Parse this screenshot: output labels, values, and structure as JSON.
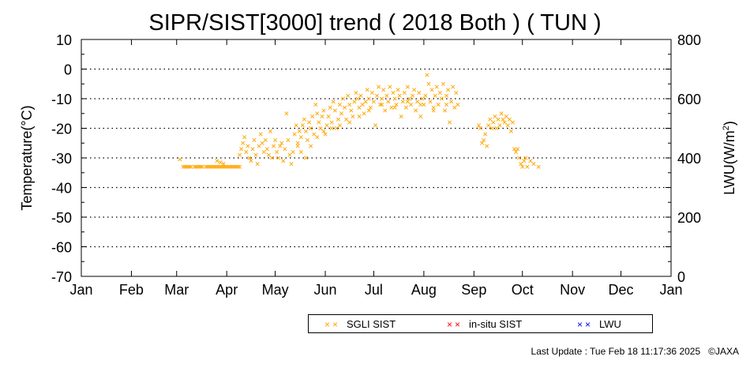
{
  "chart_data": {
    "type": "scatter",
    "title": "SIPR/SIST[3000] trend ( 2018 Both ) ( TUN )",
    "ylabel": "Temperature(°C)",
    "y2label_main": "LWU(W/m",
    "y2label_sup": "2",
    "y2label_end": ")",
    "xlim": [
      0,
      365
    ],
    "ylim": [
      -70,
      10
    ],
    "y2lim": [
      0,
      800
    ],
    "y_ticks": [
      10,
      0,
      -10,
      -20,
      -30,
      -40,
      -50,
      -60,
      -70
    ],
    "y2_ticks": [
      800,
      600,
      400,
      200,
      0
    ],
    "x_tick_labels": [
      "Jan",
      "Feb",
      "Mar",
      "Apr",
      "May",
      "Jun",
      "Jul",
      "Aug",
      "Sep",
      "Oct",
      "Nov",
      "Dec",
      "Jan"
    ],
    "x_tick_days": [
      0,
      31,
      59,
      90,
      120,
      151,
      181,
      212,
      243,
      273,
      304,
      334,
      365
    ],
    "grid": "horizontal dotted",
    "legend_position": "bottom",
    "series": [
      {
        "name": "SGLI SIST",
        "color": "#FFA500",
        "points": [
          [
            61,
            -30.5
          ],
          [
            63,
            -33
          ],
          [
            64,
            -33
          ],
          [
            65,
            -33
          ],
          [
            66,
            -33
          ],
          [
            67,
            -33
          ],
          [
            68,
            -33
          ],
          [
            70,
            -33
          ],
          [
            71,
            -33
          ],
          [
            72,
            -33
          ],
          [
            73,
            -33
          ],
          [
            74,
            -33
          ],
          [
            75,
            -33
          ],
          [
            77,
            -33
          ],
          [
            78,
            -33
          ],
          [
            79,
            -33
          ],
          [
            80,
            -33
          ],
          [
            81,
            -33
          ],
          [
            82,
            -33
          ],
          [
            83,
            -33
          ],
          [
            84,
            -33
          ],
          [
            85,
            -33
          ],
          [
            86,
            -33
          ],
          [
            87,
            -33
          ],
          [
            88,
            -33
          ],
          [
            89,
            -33
          ],
          [
            90,
            -33
          ],
          [
            91,
            -33
          ],
          [
            92,
            -33
          ],
          [
            93,
            -33
          ],
          [
            94,
            -33
          ],
          [
            95,
            -33
          ],
          [
            96,
            -33
          ],
          [
            97,
            -33
          ],
          [
            98,
            -33
          ],
          [
            84,
            -31
          ],
          [
            86,
            -31.5
          ],
          [
            88,
            -32
          ],
          [
            98,
            -29
          ],
          [
            99,
            -27
          ],
          [
            100,
            -25
          ],
          [
            101,
            -23
          ],
          [
            102,
            -28
          ],
          [
            103,
            -26
          ],
          [
            104,
            -30
          ],
          [
            105,
            -31
          ],
          [
            106,
            -27
          ],
          [
            107,
            -24
          ],
          [
            108,
            -29
          ],
          [
            109,
            -32
          ],
          [
            110,
            -26
          ],
          [
            111,
            -22
          ],
          [
            112,
            -25
          ],
          [
            113,
            -28
          ],
          [
            114,
            -24
          ],
          [
            115,
            -27
          ],
          [
            116,
            -29
          ],
          [
            117,
            -21
          ],
          [
            118,
            -30
          ],
          [
            119,
            -26
          ],
          [
            120,
            -24
          ],
          [
            121,
            -28
          ],
          [
            122,
            -30
          ],
          [
            123,
            -26
          ],
          [
            124,
            -25
          ],
          [
            125,
            -31
          ],
          [
            126,
            -27
          ],
          [
            127,
            -15
          ],
          [
            128,
            -24
          ],
          [
            129,
            -29
          ],
          [
            130,
            -32
          ],
          [
            131,
            -28
          ],
          [
            132,
            -22
          ],
          [
            133,
            -19
          ],
          [
            134,
            -25
          ],
          [
            135,
            -21
          ],
          [
            136,
            -23
          ],
          [
            137,
            -19
          ],
          [
            138,
            -17
          ],
          [
            139,
            -21
          ],
          [
            140,
            -24
          ],
          [
            141,
            -18
          ],
          [
            142,
            -20
          ],
          [
            143,
            -16
          ],
          [
            144,
            -22
          ],
          [
            145,
            -12
          ],
          [
            146,
            -15
          ],
          [
            147,
            -18
          ],
          [
            148,
            -20
          ],
          [
            149,
            -16
          ],
          [
            150,
            -14
          ],
          [
            151,
            -22
          ],
          [
            152,
            -19
          ],
          [
            153,
            -16
          ],
          [
            154,
            -13
          ],
          [
            155,
            -18
          ],
          [
            156,
            -11
          ],
          [
            157,
            -14
          ],
          [
            158,
            -20
          ],
          [
            159,
            -17
          ],
          [
            160,
            -12
          ],
          [
            161,
            -15
          ],
          [
            162,
            -10
          ],
          [
            163,
            -13
          ],
          [
            164,
            -17
          ],
          [
            165,
            -9
          ],
          [
            166,
            -12
          ],
          [
            167,
            -14
          ],
          [
            168,
            -16
          ],
          [
            169,
            -11
          ],
          [
            170,
            -8
          ],
          [
            171,
            -10
          ],
          [
            172,
            -13
          ],
          [
            173,
            -9
          ],
          [
            174,
            -12
          ],
          [
            175,
            -15
          ],
          [
            176,
            -11
          ],
          [
            177,
            -7
          ],
          [
            178,
            -10
          ],
          [
            179,
            -13
          ],
          [
            180,
            -8
          ],
          [
            181,
            -11
          ],
          [
            182,
            -19
          ],
          [
            183,
            -9
          ],
          [
            184,
            -6
          ],
          [
            185,
            -12
          ],
          [
            186,
            -10
          ],
          [
            187,
            -7
          ],
          [
            188,
            -14
          ],
          [
            189,
            -9
          ],
          [
            190,
            -11
          ],
          [
            191,
            -6
          ],
          [
            192,
            -13
          ],
          [
            193,
            -8
          ],
          [
            194,
            -10
          ],
          [
            195,
            -12
          ],
          [
            196,
            -7
          ],
          [
            197,
            -9
          ],
          [
            198,
            -16
          ],
          [
            199,
            -11
          ],
          [
            200,
            -8
          ],
          [
            201,
            -13
          ],
          [
            202,
            -6
          ],
          [
            203,
            -10
          ],
          [
            204,
            -12
          ],
          [
            205,
            -9
          ],
          [
            206,
            -7
          ],
          [
            207,
            -14
          ],
          [
            208,
            -11
          ],
          [
            209,
            -8
          ],
          [
            210,
            -16
          ],
          [
            211,
            -10
          ],
          [
            212,
            -12
          ],
          [
            213,
            -9
          ],
          [
            214,
            -2
          ],
          [
            215,
            -5
          ],
          [
            216,
            -11
          ],
          [
            217,
            -7
          ],
          [
            218,
            -13
          ],
          [
            219,
            -9
          ],
          [
            220,
            -6
          ],
          [
            221,
            -12
          ],
          [
            222,
            -8
          ],
          [
            223,
            -10
          ],
          [
            224,
            -5
          ],
          [
            225,
            -14
          ],
          [
            226,
            -9
          ],
          [
            227,
            -7
          ],
          [
            228,
            -18
          ],
          [
            229,
            -11
          ],
          [
            230,
            -6
          ],
          [
            231,
            -13
          ],
          [
            232,
            -8
          ],
          [
            233,
            -12
          ],
          [
            134,
            -26
          ],
          [
            136,
            -28
          ],
          [
            139,
            -30
          ],
          [
            142,
            -26
          ],
          [
            146,
            -23
          ],
          [
            150,
            -21
          ],
          [
            155,
            -20
          ],
          [
            160,
            -19
          ],
          [
            166,
            -18
          ],
          [
            172,
            -16
          ],
          [
            178,
            -14
          ],
          [
            186,
            -12
          ],
          [
            194,
            -13
          ],
          [
            202,
            -11
          ],
          [
            210,
            -12
          ],
          [
            218,
            -14
          ],
          [
            226,
            -12
          ],
          [
            246,
            -19
          ],
          [
            247,
            -20
          ],
          [
            248,
            -25
          ],
          [
            249,
            -24
          ],
          [
            250,
            -22
          ],
          [
            251,
            -26
          ],
          [
            252,
            -19
          ],
          [
            253,
            -17
          ],
          [
            254,
            -20
          ],
          [
            255,
            -18
          ],
          [
            256,
            -16
          ],
          [
            257,
            -20
          ],
          [
            258,
            -17
          ],
          [
            259,
            -19
          ],
          [
            260,
            -15
          ],
          [
            261,
            -17
          ],
          [
            262,
            -18
          ],
          [
            263,
            -16
          ],
          [
            264,
            -19
          ],
          [
            265,
            -17
          ],
          [
            266,
            -21
          ],
          [
            267,
            -18
          ],
          [
            268,
            -27
          ],
          [
            269,
            -28
          ],
          [
            270,
            -27
          ],
          [
            271,
            -30
          ],
          [
            272,
            -32
          ],
          [
            273,
            -33
          ],
          [
            274,
            -31
          ],
          [
            275,
            -30
          ],
          [
            276,
            -33
          ],
          [
            278,
            -31
          ],
          [
            280,
            -32
          ],
          [
            283,
            -33
          ]
        ]
      },
      {
        "name": "in-situ SIST",
        "color": "#FF0000",
        "points": []
      },
      {
        "name": "LWU",
        "color": "#0000FF",
        "points": []
      }
    ]
  },
  "footer": {
    "last_update": "Last Update : Tue Feb 18 11:17:36 2025",
    "copyright": "©JAXA"
  }
}
